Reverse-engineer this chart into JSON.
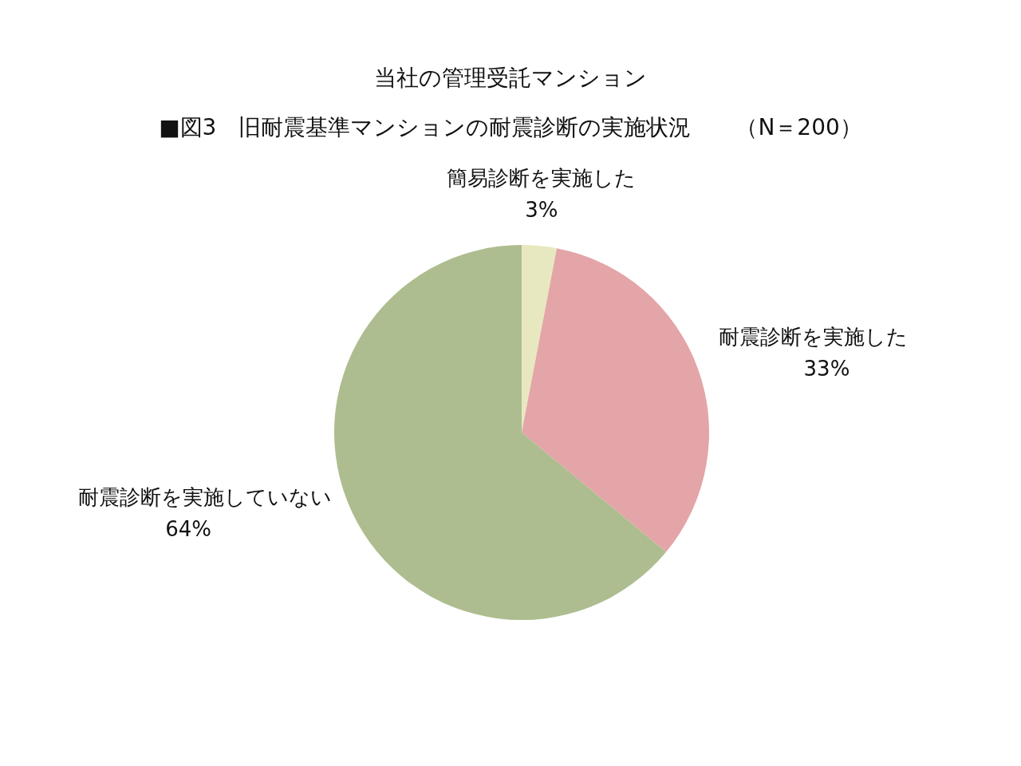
{
  "chart_data": {
    "type": "pie",
    "title": "当社の管理受託マンション",
    "subtitle": "■図3　旧耐震基準マンションの耐震診断の実施状況　　（N＝200）",
    "categories": [
      "簡易診断を実施した",
      "耐震診断を実施した",
      "耐震診断を実施していない"
    ],
    "values": [
      3,
      33,
      64
    ],
    "colors": [
      "#e8e8c0",
      "#e3a5a7",
      "#adbd8f"
    ],
    "value_labels": [
      "3%",
      "33%",
      "64%"
    ]
  }
}
